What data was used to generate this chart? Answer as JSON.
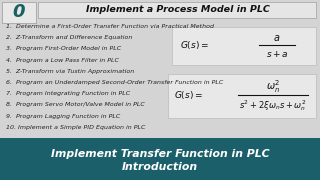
{
  "title": "Implement a Process Model in PLC",
  "items": [
    "1.  Determine a First-Order Transfer Function via Practical Method",
    "2.  Z-Transform and Difference Equation",
    "3.  Program First-Order Model in PLC",
    "4.  Program a Low Pass Filter in PLC",
    "5.  Z-Transform via Tustin Approximation",
    "6.  Program an Underdamped Second-Order Transfer Function in PLC",
    "7.  Program Integrating Function in PLC",
    "8.  Program Servo Motor/Valve Model in PLC",
    "9.  Program Lagging Function in PLC",
    "10. Implement a Simple PID Equation in PLC"
  ],
  "footer_line1": "Implement Transfer Function in PLC",
  "footer_line2": "Introduction",
  "bg_color": "#c8c8c8",
  "footer_bg": "#1a5f6a",
  "footer_text_color": "#ffffff",
  "item_color": "#222222",
  "logo_color": "#1a6060",
  "title_bg": "#e5e5e5",
  "formula_bg": "#e8e8e8"
}
